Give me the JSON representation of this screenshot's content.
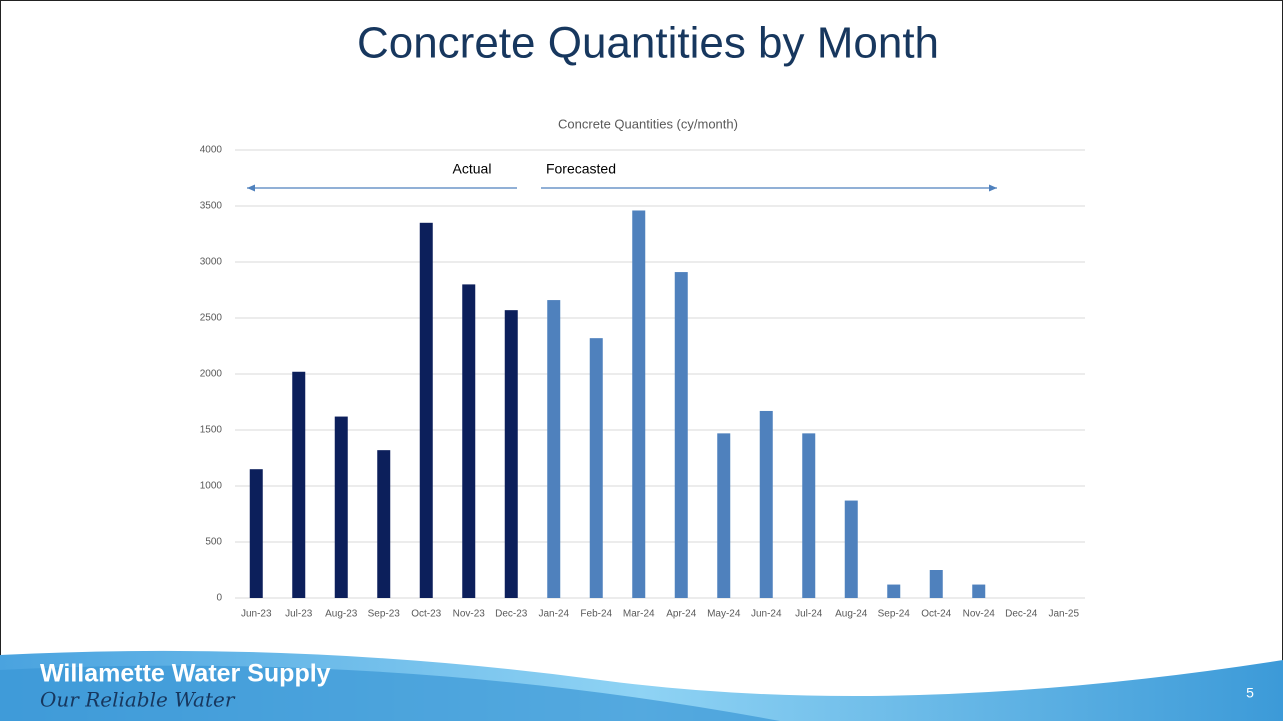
{
  "title": "Concrete Quantities by Month",
  "chart_data": {
    "type": "bar",
    "title": "Concrete Quantities (cy/month)",
    "categories": [
      "Jun-23",
      "Jul-23",
      "Aug-23",
      "Sep-23",
      "Oct-23",
      "Nov-23",
      "Dec-23",
      "Jan-24",
      "Feb-24",
      "Mar-24",
      "Apr-24",
      "May-24",
      "Jun-24",
      "Jul-24",
      "Aug-24",
      "Sep-24",
      "Oct-24",
      "Nov-24",
      "Dec-24",
      "Jan-25"
    ],
    "series": [
      {
        "name": "Actual",
        "color": "#0c1f5b",
        "values": [
          1150,
          2020,
          1620,
          1320,
          3350,
          2800,
          2570,
          null,
          null,
          null,
          null,
          null,
          null,
          null,
          null,
          null,
          null,
          null,
          null,
          null
        ]
      },
      {
        "name": "Forecasted",
        "color": "#4f81bd",
        "values": [
          null,
          null,
          null,
          null,
          null,
          null,
          null,
          2660,
          2320,
          3460,
          2910,
          1470,
          1670,
          1470,
          870,
          120,
          250,
          120,
          0,
          0
        ]
      }
    ],
    "ylim": [
      0,
      4000
    ],
    "yticks": [
      0,
      500,
      1000,
      1500,
      2000,
      2500,
      3000,
      3500,
      4000
    ],
    "grid": true
  },
  "footer": {
    "brand": "Willamette Water Supply",
    "tagline": "Our Reliable Water"
  },
  "page_number": 5
}
